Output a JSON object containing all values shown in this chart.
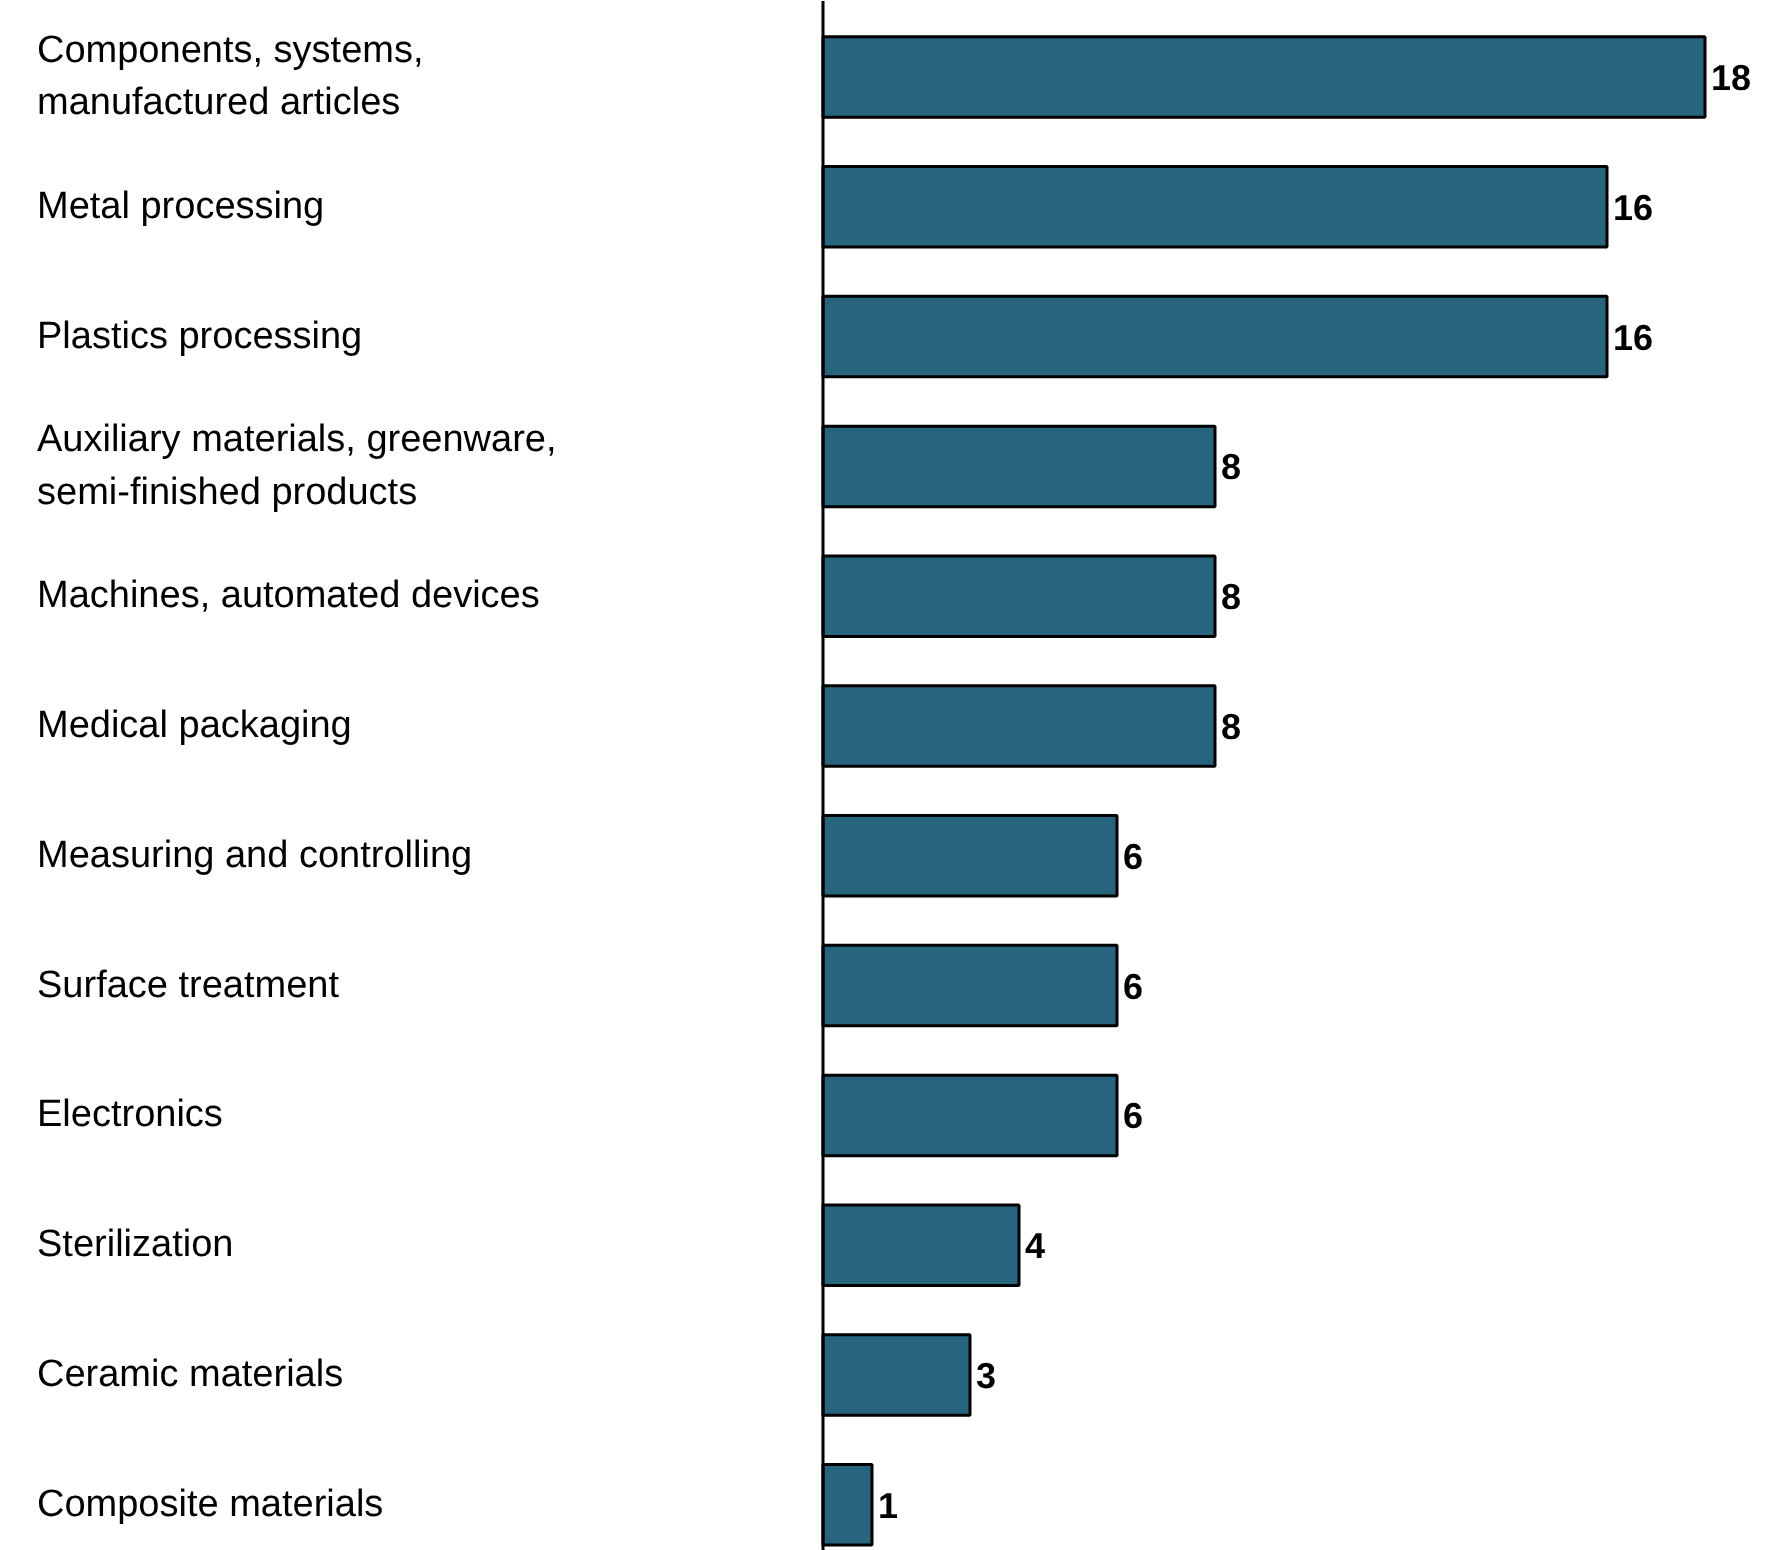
{
  "chart_data": {
    "type": "bar",
    "orientation": "horizontal",
    "categories": [
      "Components, systems, manufactured articles",
      "Metal processing",
      "Plastics processing",
      "Auxiliary materials, greenware, semi-finished products",
      "Machines, automated devices",
      "Medical packaging",
      "Measuring and controlling",
      "Surface treatment",
      "Electronics",
      "Sterilization",
      "Ceramic materials",
      "Composite materials"
    ],
    "values": [
      18,
      16,
      16,
      8,
      8,
      8,
      6,
      6,
      6,
      4,
      3,
      1
    ],
    "color": "#27657f",
    "data_labels": true
  }
}
